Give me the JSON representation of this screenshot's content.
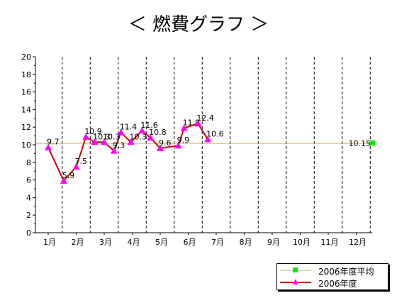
{
  "title": "＜ 燃費グラフ ＞",
  "chart_data": {
    "type": "line",
    "ylim": [
      0,
      20
    ],
    "yticks": [
      0,
      2,
      4,
      6,
      8,
      10,
      12,
      14,
      16,
      18,
      20
    ],
    "categories": [
      "1月",
      "2月",
      "3月",
      "4月",
      "5月",
      "6月",
      "7月",
      "8月",
      "9月",
      "10月",
      "11月",
      "12月"
    ],
    "grid": "vertical dashed lines between months",
    "legend_position": "bottom-right",
    "series": [
      {
        "name": "2006年度",
        "color": "#cc0000",
        "marker_color": "#ff00ff",
        "marker": "triangle",
        "points": [
          {
            "x": 0.0,
            "y": 9.7,
            "label": "9.7"
          },
          {
            "x": 0.55,
            "y": 5.9,
            "label": "5.9"
          },
          {
            "x": 1.0,
            "y": 7.5,
            "label": "7.5"
          },
          {
            "x": 1.35,
            "y": 10.9,
            "label": "10.9"
          },
          {
            "x": 1.65,
            "y": 10.3,
            "label": "10.3"
          },
          {
            "x": 2.0,
            "y": 10.3,
            "label": "10.3"
          },
          {
            "x": 2.35,
            "y": 9.3,
            "label": "9.3"
          },
          {
            "x": 2.6,
            "y": 11.4,
            "label": "11.4"
          },
          {
            "x": 2.95,
            "y": 10.3,
            "label": "10.3"
          },
          {
            "x": 3.35,
            "y": 11.6,
            "label": "11.6"
          },
          {
            "x": 3.65,
            "y": 10.8,
            "label": "10.8"
          },
          {
            "x": 4.0,
            "y": 9.6,
            "label": "9.6"
          },
          {
            "x": 4.65,
            "y": 9.9,
            "label": "9.9"
          },
          {
            "x": 4.85,
            "y": 11.9,
            "label": "11.9"
          },
          {
            "x": 5.35,
            "y": 12.4,
            "label": "12.4"
          },
          {
            "x": 5.7,
            "y": 10.6,
            "label": "10.6"
          }
        ]
      },
      {
        "name": "2006年度平均",
        "color": "#c8b068",
        "marker_color": "#00ee00",
        "marker": "square",
        "value": 10.15,
        "label": "10.15"
      }
    ]
  }
}
